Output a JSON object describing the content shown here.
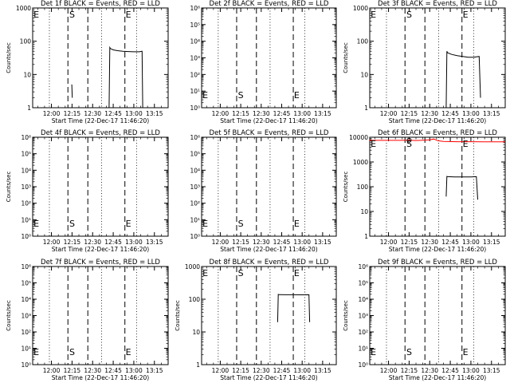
{
  "chart_data": [
    {
      "type": "line",
      "title": "Det 1f BLACK = Events, RED = LLD",
      "xlabel": "Start Time (22-Dec-17 11:46:20)",
      "ylabel": "Counts/sec",
      "yscale": "log",
      "ylim": [
        1,
        1000
      ],
      "yticks": [
        "1",
        "10",
        "100",
        "1000"
      ],
      "xticks": [
        "12:00",
        "12:15",
        "12:30",
        "12:45",
        "13:00",
        "13:15"
      ],
      "markers": [
        "E",
        "S",
        "E"
      ],
      "series": [
        {
          "color": "#000000",
          "x": [
            "12:14:30",
            "12:14:50",
            "12:15:10",
            "12:15:30"
          ],
          "y": [
            null,
            5,
            2,
            null
          ]
        },
        {
          "color": "#000000",
          "x": [
            "12:42",
            "12:42.5",
            "12:43",
            "12:45",
            "12:48",
            "12:52",
            "12:56",
            "13:00",
            "13:04",
            "13:06",
            "13:06.5"
          ],
          "y": [
            1,
            65,
            60,
            55,
            52,
            50,
            49,
            48,
            48,
            50,
            1
          ]
        }
      ]
    },
    {
      "type": "line",
      "title": "Det 2f BLACK = Events, RED = LLD",
      "xlabel": "Start Time (22-Dec-17 11:46:20)",
      "ylabel": "",
      "yscale": "log",
      "ylim": [
        1,
        1000000
      ],
      "yticks": [
        "10⁰",
        "10¹",
        "10²",
        "10³",
        "10⁴",
        "10⁵",
        "10⁶"
      ],
      "xticks": [
        "12:00",
        "12:15",
        "12:30",
        "12:45",
        "13:00",
        "13:15"
      ],
      "markers": [
        "E",
        "S",
        "E"
      ],
      "series": [
        {
          "color": "#000000",
          "x": [
            "12:14:30",
            "12:14:50",
            "12:15:10"
          ],
          "y": [
            null,
            3,
            null
          ]
        }
      ]
    },
    {
      "type": "line",
      "title": "Det 3f BLACK = Events, RED = LLD",
      "xlabel": "Start Time (22-Dec-17 11:46:20)",
      "ylabel": "Counts/sec",
      "yscale": "log",
      "ylim": [
        1,
        1000
      ],
      "yticks": [
        "1",
        "10",
        "100",
        "1000"
      ],
      "xticks": [
        "12:00",
        "12:15",
        "12:30",
        "12:45",
        "13:00",
        "13:15"
      ],
      "markers": [
        "E",
        "S",
        "E"
      ],
      "series": [
        {
          "color": "#000000",
          "x": [
            "12:14:30",
            "12:14:50",
            "12:15:10"
          ],
          "y": [
            null,
            4,
            null
          ]
        },
        {
          "color": "#000000",
          "x": [
            "12:42",
            "12:42.5",
            "12:43",
            "12:46",
            "12:50",
            "12:54",
            "12:58",
            "13:02",
            "13:06",
            "13:07"
          ],
          "y": [
            1,
            50,
            45,
            40,
            37,
            35,
            33,
            33,
            35,
            2
          ]
        }
      ]
    },
    {
      "type": "line",
      "title": "Det 4f BLACK = Events, RED = LLD",
      "xlabel": "Start Time (22-Dec-17 11:46:20)",
      "ylabel": "Counts/sec",
      "yscale": "log",
      "ylim": [
        1,
        1000000
      ],
      "yticks": [
        "10⁰",
        "10¹",
        "10²",
        "10³",
        "10⁴",
        "10⁵",
        "10⁶"
      ],
      "xticks": [
        "12:00",
        "12:15",
        "12:30",
        "12:45",
        "13:00",
        "13:15"
      ],
      "markers": [
        "E",
        "S",
        "E"
      ],
      "series": []
    },
    {
      "type": "line",
      "title": "Det 5f BLACK = Events, RED = LLD",
      "xlabel": "Start Time (22-Dec-17 11:46:20)",
      "ylabel": "",
      "yscale": "log",
      "ylim": [
        1,
        1000000
      ],
      "yticks": [
        "10⁰",
        "10¹",
        "10²",
        "10³",
        "10⁴",
        "10⁵",
        "10⁶"
      ],
      "xticks": [
        "12:00",
        "12:15",
        "12:30",
        "12:45",
        "13:00",
        "13:15"
      ],
      "markers": [
        "E",
        "S",
        "E"
      ],
      "series": []
    },
    {
      "type": "line",
      "title": "Det 6f BLACK = Events, RED = LLD",
      "xlabel": "Start Time (22-Dec-17 11:46:20)",
      "ylabel": "Counts/sec",
      "yscale": "log",
      "ylim": [
        1,
        10000
      ],
      "yticks": [
        "1",
        "10",
        "100",
        "1000",
        "10000"
      ],
      "xticks": [
        "12:00",
        "12:15",
        "12:30",
        "12:45",
        "13:00",
        "13:15"
      ],
      "markers": [
        "E",
        "S",
        "E"
      ],
      "series": [
        {
          "color": "#ff0000",
          "x": [
            "11:46",
            "12:00",
            "12:10",
            "12:15",
            "12:20",
            "12:25",
            "12:30",
            "12:33",
            "12:36",
            "12:40",
            "12:50",
            "13:00",
            "13:10",
            "13:20",
            "13:25"
          ],
          "y": [
            7500,
            7500,
            7500,
            7600,
            7400,
            7600,
            7800,
            8500,
            7200,
            6800,
            6600,
            6600,
            6500,
            6500,
            6500
          ]
        },
        {
          "color": "#000000",
          "x": [
            "12:14:30",
            "12:14:50",
            "12:15:10"
          ],
          "y": [
            null,
            10,
            null
          ]
        },
        {
          "color": "#000000",
          "x": [
            "12:42",
            "12:42.5",
            "12:43",
            "12:48",
            "12:54",
            "13:00",
            "13:04",
            "13:05"
          ],
          "y": [
            40,
            260,
            255,
            250,
            250,
            248,
            255,
            30
          ]
        }
      ]
    },
    {
      "type": "line",
      "title": "Det 7f BLACK = Events, RED = LLD",
      "xlabel": "Start Time (22-Dec-17 11:46:20)",
      "ylabel": "Counts/sec",
      "yscale": "log",
      "ylim": [
        1,
        1000000
      ],
      "yticks": [
        "10⁰",
        "10¹",
        "10²",
        "10³",
        "10⁴",
        "10⁵",
        "10⁶"
      ],
      "xticks": [
        "12:00",
        "12:15",
        "12:30",
        "12:45",
        "13:00",
        "13:15"
      ],
      "markers": [
        "E",
        "S",
        "E"
      ],
      "series": []
    },
    {
      "type": "line",
      "title": "Det 8f BLACK = Events, RED = LLD",
      "xlabel": "Start Time (22-Dec-17 11:46:20)",
      "ylabel": "Counts/sec",
      "yscale": "log",
      "ylim": [
        1,
        1000
      ],
      "yticks": [
        "1",
        "10",
        "100",
        "1000"
      ],
      "xticks": [
        "12:00",
        "12:15",
        "12:30",
        "12:45",
        "13:00",
        "13:15"
      ],
      "markers": [
        "E",
        "S",
        "E"
      ],
      "series": [
        {
          "color": "#000000",
          "x": [
            "12:14:30",
            "12:14:50",
            "12:15:10"
          ],
          "y": [
            null,
            8,
            null
          ]
        },
        {
          "color": "#000000",
          "x": [
            "12:42",
            "12:42.5",
            "12:43",
            "12:48",
            "12:54",
            "13:00",
            "13:05",
            "13:05.5"
          ],
          "y": [
            20,
            140,
            138,
            137,
            137,
            136,
            137,
            20
          ]
        }
      ]
    },
    {
      "type": "line",
      "title": "Det 9f BLACK = Events, RED = LLD",
      "xlabel": "Start Time (22-Dec-17 11:46:20)",
      "ylabel": "Counts/sec",
      "yscale": "log",
      "ylim": [
        1,
        1000000
      ],
      "yticks": [
        "10⁰",
        "10¹",
        "10²",
        "10³",
        "10⁴",
        "10⁵",
        "10⁶"
      ],
      "xticks": [
        "12:00",
        "12:15",
        "12:30",
        "12:45",
        "13:00",
        "13:15"
      ],
      "markers": [
        "E",
        "S",
        "E"
      ],
      "series": []
    }
  ]
}
